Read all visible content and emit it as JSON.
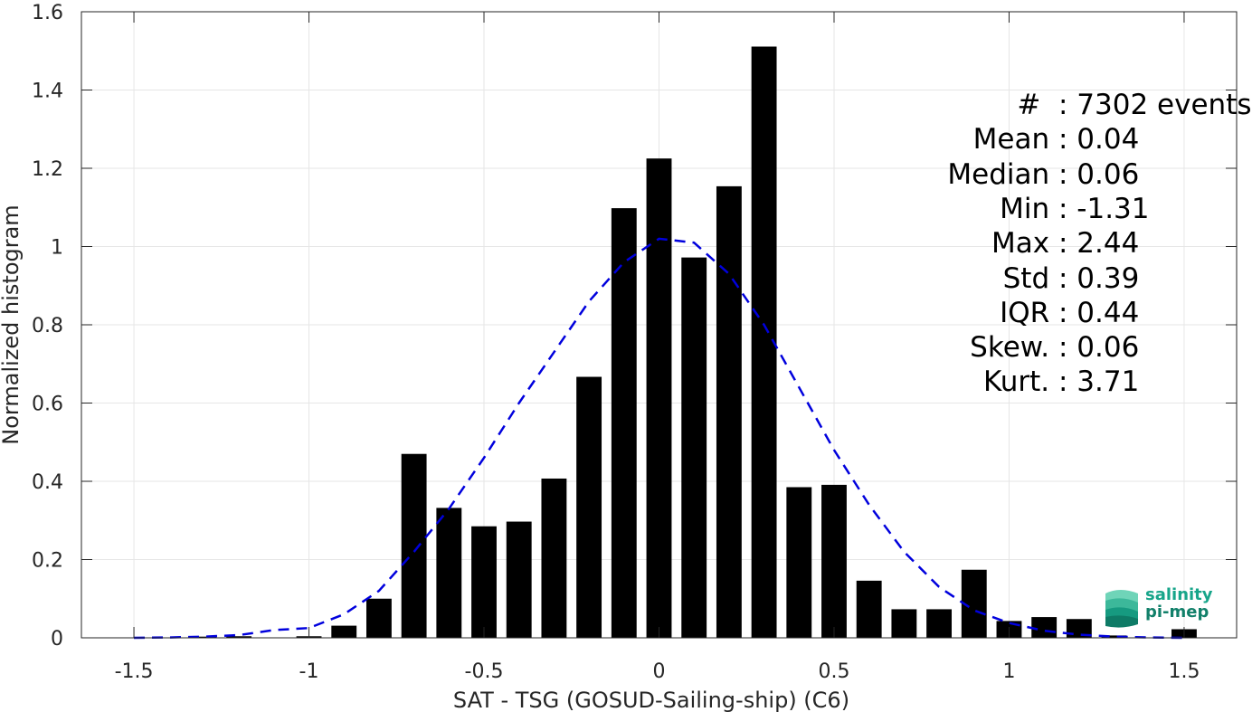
{
  "chart_data": {
    "type": "bar",
    "xlabel": "SAT - TSG (GOSUD-Sailing-ship) (C6)",
    "ylabel": "Normalized histogram",
    "xlim": [
      -1.65,
      1.65
    ],
    "ylim": [
      0,
      1.6
    ],
    "xticks": [
      -1.5,
      -1,
      -0.5,
      0,
      0.5,
      1,
      1.5
    ],
    "xtick_labels": [
      "-1.5",
      "-1",
      "-0.5",
      "0",
      "0.5",
      "1",
      "1.5"
    ],
    "yticks": [
      0,
      0.2,
      0.4,
      0.6,
      0.8,
      1.0,
      1.2,
      1.4,
      1.6
    ],
    "ytick_labels": [
      "0",
      "0.2",
      "0.4",
      "0.6",
      "0.8",
      "1",
      "1.2",
      "1.4",
      "1.6"
    ],
    "grid": true,
    "bars": {
      "color": "#000000",
      "x": [
        -1.3,
        -1.2,
        -1.0,
        -0.9,
        -0.8,
        -0.7,
        -0.6,
        -0.5,
        -0.4,
        -0.3,
        -0.2,
        -0.1,
        0.0,
        0.1,
        0.2,
        0.3,
        0.4,
        0.5,
        0.6,
        0.7,
        0.8,
        0.9,
        1.0,
        1.1,
        1.2,
        1.3,
        1.5
      ],
      "values": [
        0.003,
        0.004,
        0.004,
        0.031,
        0.1,
        0.47,
        0.332,
        0.285,
        0.297,
        0.407,
        0.667,
        1.098,
        1.225,
        0.972,
        1.154,
        1.511,
        0.385,
        0.391,
        0.146,
        0.073,
        0.073,
        0.174,
        0.043,
        0.053,
        0.048,
        0.006,
        0.022
      ]
    },
    "fit_curve": {
      "style": "dashed",
      "color": "#0000dd",
      "x": [
        -1.5,
        -1.4,
        -1.3,
        -1.2,
        -1.1,
        -1.0,
        -0.9,
        -0.8,
        -0.7,
        -0.6,
        -0.5,
        -0.4,
        -0.3,
        -0.2,
        -0.1,
        0.0,
        0.1,
        0.2,
        0.3,
        0.4,
        0.5,
        0.6,
        0.7,
        0.8,
        0.9,
        1.0,
        1.1,
        1.2,
        1.3,
        1.4,
        1.5
      ],
      "y": [
        0.0,
        0.001,
        0.003,
        0.007,
        0.02,
        0.025,
        0.06,
        0.12,
        0.22,
        0.33,
        0.46,
        0.6,
        0.73,
        0.86,
        0.96,
        1.02,
        1.01,
        0.93,
        0.8,
        0.64,
        0.48,
        0.34,
        0.22,
        0.13,
        0.07,
        0.038,
        0.018,
        0.008,
        0.003,
        0.001,
        0.0
      ]
    }
  },
  "stats": {
    "lines": [
      "#  : 7302 events",
      "Mean : 0.04",
      "Median : 0.06",
      "Min : -1.31",
      "Max : 2.44",
      "Std : 0.39",
      "IQR : 0.44",
      "Skew. : 0.06",
      "Kurt. : 3.71"
    ]
  },
  "logo": {
    "line1": "salinity",
    "line2": "pi-mep",
    "color": "#17a58a"
  }
}
